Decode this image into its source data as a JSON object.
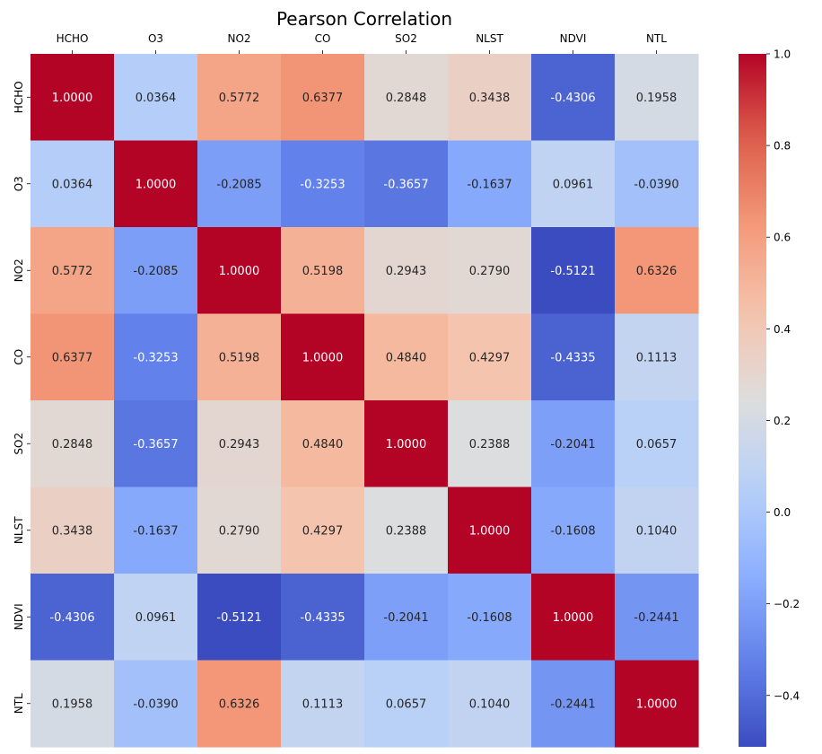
{
  "chart_data": {
    "type": "heatmap",
    "title": "Pearson Correlation",
    "x_labels": [
      "HCHO",
      "O3",
      "NO2",
      "CO",
      "SO2",
      "NLST",
      "NDVI",
      "NTL"
    ],
    "y_labels": [
      "HCHO",
      "O3",
      "NO2",
      "CO",
      "SO2",
      "NLST",
      "NDVI",
      "NTL"
    ],
    "values": [
      [
        1.0,
        0.0364,
        0.5772,
        0.6377,
        0.2848,
        0.3438,
        -0.4306,
        0.1958
      ],
      [
        0.0364,
        1.0,
        -0.2085,
        -0.3253,
        -0.3657,
        -0.1637,
        0.0961,
        -0.039
      ],
      [
        0.5772,
        -0.2085,
        1.0,
        0.5198,
        0.2943,
        0.279,
        -0.5121,
        0.6326
      ],
      [
        0.6377,
        -0.3253,
        0.5198,
        1.0,
        0.484,
        0.4297,
        -0.4335,
        0.1113
      ],
      [
        0.2848,
        -0.3657,
        0.2943,
        0.484,
        1.0,
        0.2388,
        -0.2041,
        0.0657
      ],
      [
        0.3438,
        -0.1637,
        0.279,
        0.4297,
        0.2388,
        1.0,
        -0.1608,
        0.104
      ],
      [
        -0.4306,
        0.0961,
        -0.5121,
        -0.4335,
        -0.2041,
        -0.1608,
        1.0,
        -0.2441
      ],
      [
        0.1958,
        -0.039,
        0.6326,
        0.1113,
        0.0657,
        0.104,
        -0.2441,
        1.0
      ]
    ],
    "cell_labels": [
      [
        "1.0000",
        "0.0364",
        "0.5772",
        "0.6377",
        "0.2848",
        "0.3438",
        "-0.4306",
        "0.1958"
      ],
      [
        "0.0364",
        "1.0000",
        "-0.2085",
        "-0.3253",
        "-0.3657",
        "-0.1637",
        "0.0961",
        "-0.0390"
      ],
      [
        "0.5772",
        "-0.2085",
        "1.0000",
        "0.5198",
        "0.2943",
        "0.2790",
        "-0.5121",
        "0.6326"
      ],
      [
        "0.6377",
        "-0.3253",
        "0.5198",
        "1.0000",
        "0.4840",
        "0.4297",
        "-0.4335",
        "0.1113"
      ],
      [
        "0.2848",
        "-0.3657",
        "0.2943",
        "0.4840",
        "1.0000",
        "0.2388",
        "-0.2041",
        "0.0657"
      ],
      [
        "0.3438",
        "-0.1637",
        "0.2790",
        "0.4297",
        "0.2388",
        "1.0000",
        "-0.1608",
        "0.1040"
      ],
      [
        "-0.4306",
        "0.0961",
        "-0.5121",
        "-0.4335",
        "-0.2041",
        "-0.1608",
        "1.0000",
        "-0.2441"
      ],
      [
        "0.1958",
        "-0.0390",
        "0.6326",
        "0.1113",
        "0.0657",
        "0.1040",
        "-0.2441",
        "1.0000"
      ]
    ],
    "colormap": "coolwarm",
    "color_range": [
      -0.5121,
      1.0
    ],
    "colorbar_ticks": [
      1.0,
      0.8,
      0.6,
      0.4,
      0.2,
      0.0,
      -0.2,
      -0.4
    ],
    "colorbar_tick_labels": [
      "1.0",
      "0.8",
      "0.6",
      "0.4",
      "0.2",
      "0.0",
      "−0.2",
      "−0.4"
    ],
    "x_axis_position": "top",
    "grid": false
  }
}
